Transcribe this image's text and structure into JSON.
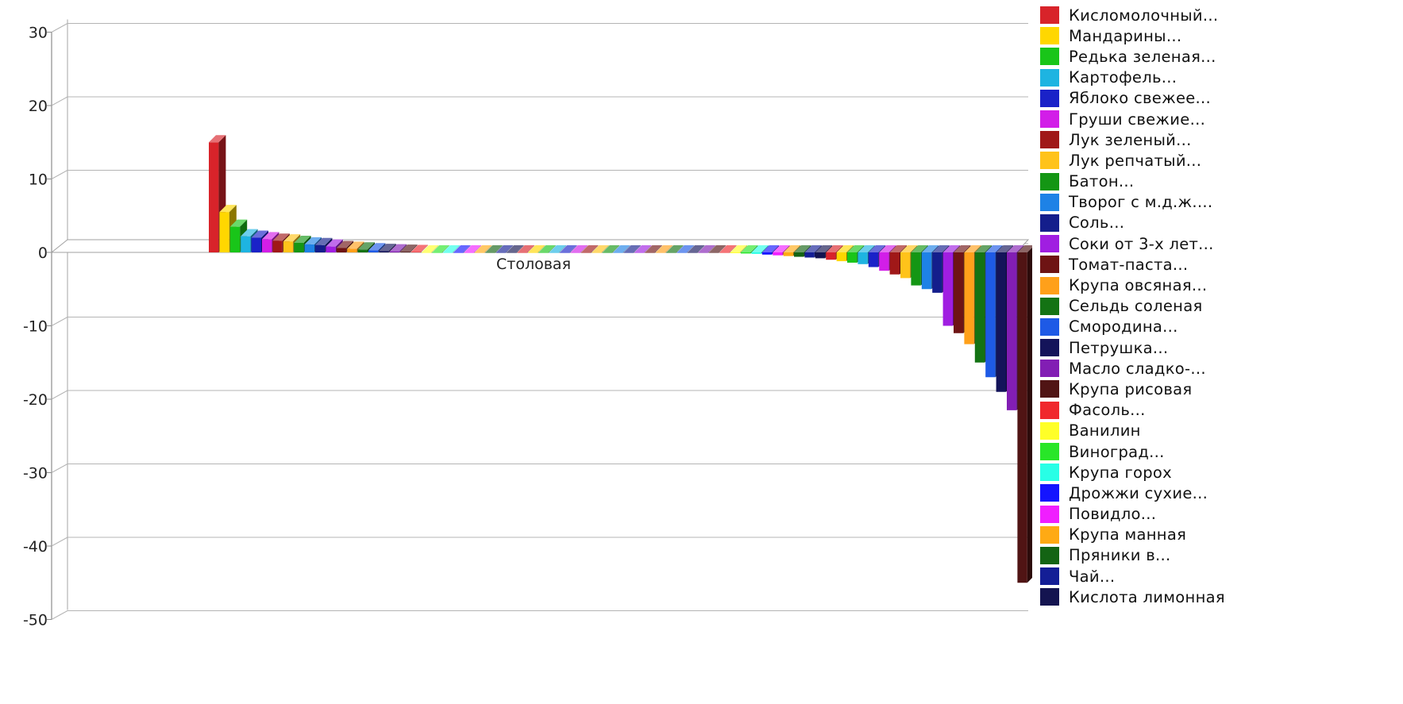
{
  "chart_data": {
    "type": "bar",
    "category_label": "Столовая",
    "yticks": [
      "30",
      "20",
      "10",
      "0",
      "-10",
      "-20",
      "-30",
      "-40",
      "-50"
    ],
    "ylim": [
      -50,
      30
    ],
    "grid": true,
    "legend_position": "right",
    "palette": [
      "#d8232a",
      "#ffd700",
      "#19c519",
      "#1eb4e1",
      "#1a22c8",
      "#d21ee8",
      "#a01818",
      "#ffc31a",
      "#149614",
      "#1e82e6",
      "#141e8c",
      "#a01ee1",
      "#6e1414",
      "#ffa01a",
      "#147314",
      "#1e5ae6",
      "#14145a",
      "#821eb4",
      "#501414",
      "#f0282d",
      "#ffff28",
      "#28e628",
      "#28ffe6",
      "#1414ff",
      "#f01eff",
      "#ffaa14",
      "#146414",
      "#141e96",
      "#141450"
    ],
    "series": [
      {
        "name": "Кисломолочный...",
        "value": 15
      },
      {
        "name": "Мандарины...",
        "value": 5.5
      },
      {
        "name": "Редька зеленая...",
        "value": 3.5
      },
      {
        "name": "Картофель...",
        "value": 2.2
      },
      {
        "name": "Яблоко свежее...",
        "value": 2
      },
      {
        "name": "Груши свежие...",
        "value": 1.8
      },
      {
        "name": "Лук зеленый...",
        "value": 1.6
      },
      {
        "name": "Лук репчатый...",
        "value": 1.5
      },
      {
        "name": "Батон...",
        "value": 1.3
      },
      {
        "name": "Творог с м.д.ж....",
        "value": 1.1
      },
      {
        "name": "Соль...",
        "value": 1
      },
      {
        "name": "Соки от 3-х лет...",
        "value": 0.8
      },
      {
        "name": "Томат-паста...",
        "value": 0.6
      },
      {
        "name": "Крупа овсяная...",
        "value": 0.5
      },
      {
        "name": "Сельдь соленая",
        "value": 0.4
      },
      {
        "name": "Смородина...",
        "value": 0.3
      },
      {
        "name": "Петрушка...",
        "value": 0.2
      },
      {
        "name": "Масло сладко-...",
        "value": 0.15
      },
      {
        "name": "Крупа рисовая",
        "value": 0.1
      },
      {
        "name": "Фасоль...",
        "value": 0.05
      },
      {
        "name": "Ванилин",
        "value": 0
      },
      {
        "name": "Виноград...",
        "value": 0
      },
      {
        "name": "Крупа горох",
        "value": 0
      },
      {
        "name": "Дрожжи сухие...",
        "value": 0
      },
      {
        "name": "Повидло...",
        "value": 0
      },
      {
        "name": "Крупа манная",
        "value": 0
      },
      {
        "name": "Пряники в...",
        "value": 0
      },
      {
        "name": "Чай...",
        "value": 0
      },
      {
        "name": "Кислота лимонная",
        "value": 0
      },
      {
        "value": 0
      },
      {
        "value": 0
      },
      {
        "value": 0
      },
      {
        "value": 0
      },
      {
        "value": 0
      },
      {
        "value": 0
      },
      {
        "value": 0
      },
      {
        "value": 0
      },
      {
        "value": 0
      },
      {
        "value": 0
      },
      {
        "value": 0
      },
      {
        "value": 0
      },
      {
        "value": 0
      },
      {
        "value": 0
      },
      {
        "value": 0
      },
      {
        "value": 0
      },
      {
        "value": 0
      },
      {
        "value": 0
      },
      {
        "value": 0
      },
      {
        "value": 0
      },
      {
        "value": -0.1
      },
      {
        "value": -0.15
      },
      {
        "value": -0.2
      },
      {
        "value": -0.3
      },
      {
        "value": -0.4
      },
      {
        "value": -0.5
      },
      {
        "value": -0.6
      },
      {
        "value": -0.7
      },
      {
        "value": -0.8
      },
      {
        "value": -1
      },
      {
        "value": -1.2
      },
      {
        "value": -1.4
      },
      {
        "value": -1.6
      },
      {
        "value": -2
      },
      {
        "value": -2.5
      },
      {
        "value": -3
      },
      {
        "value": -3.5
      },
      {
        "value": -4.5
      },
      {
        "value": -5
      },
      {
        "value": -5.5
      },
      {
        "value": -10
      },
      {
        "value": -11
      },
      {
        "value": -12.5
      },
      {
        "value": -15
      },
      {
        "value": -17
      },
      {
        "value": -19
      },
      {
        "value": -21.5
      },
      {
        "value": -45
      }
    ]
  }
}
